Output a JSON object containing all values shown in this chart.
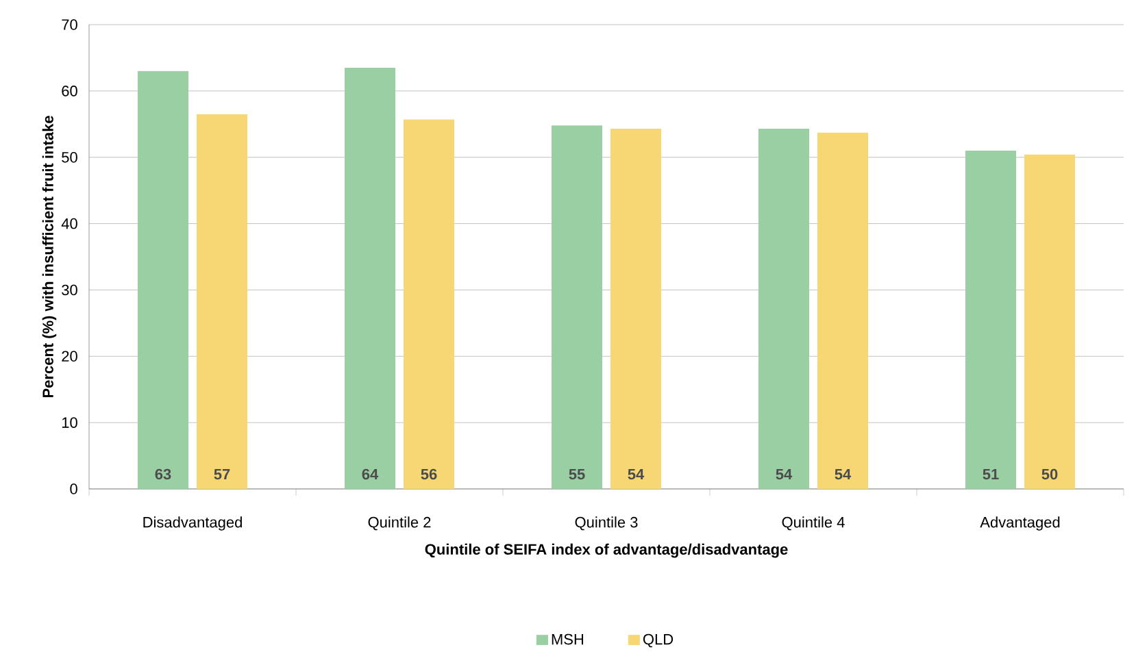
{
  "chart_data": {
    "type": "bar",
    "xlabel": "Quintile of SEIFA index of advantage/disadvantage",
    "ylabel": "Percent (%) with insufficient fruit intake",
    "categories": [
      "Disadvantaged",
      "Quintile 2",
      "Quintile 3",
      "Quintile 4",
      "Advantaged"
    ],
    "series": [
      {
        "name": "MSH",
        "color": "#99cfa3",
        "values": [
          63.0,
          63.5,
          54.8,
          54.3,
          51.0
        ],
        "value_labels": [
          "63",
          "64",
          "55",
          "54",
          "51"
        ]
      },
      {
        "name": "QLD",
        "color": "#f7d774",
        "values": [
          56.5,
          55.7,
          54.3,
          53.7,
          50.4
        ],
        "value_labels": [
          "57",
          "56",
          "54",
          "54",
          "50"
        ]
      }
    ],
    "ylim": [
      0,
      70
    ],
    "yticks": [
      0,
      10,
      20,
      30,
      40,
      50,
      60,
      70
    ],
    "grid": "y",
    "legend": "bottom"
  }
}
